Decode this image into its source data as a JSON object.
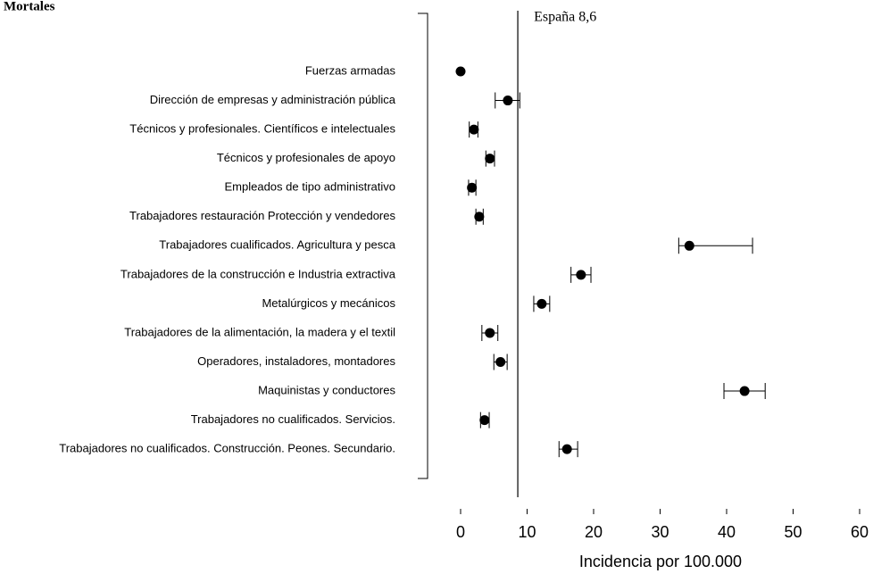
{
  "chart_data": {
    "type": "dot_errorbar",
    "title": "Mortales",
    "x_label": "Incidencia por 100.000",
    "categories": [
      "Fuerzas armadas",
      "Dirección de empresas y administración pública",
      "Técnicos y profesionales. Científicos e intelectuales",
      "Técnicos y profesionales de apoyo",
      "Empleados de tipo administrativo",
      "Trabajadores restauración Protección y vendedores",
      "Trabajadores cualificados. Agricultura y pesca",
      "Trabajadores de la construcción e Industria extractiva",
      "Metalúrgicos y mecánicos",
      "Trabajadores de la alimentación, la madera y el textil",
      "Operadores, instaladores, montadores",
      "Maquinistas y conductores",
      "Trabajadores no cualificados. Servicios.",
      "Trabajadores no cualificados. Construcción. Peones. Secundario."
    ],
    "values": [
      0,
      7.1,
      2.0,
      4.4,
      1.7,
      2.8,
      34.4,
      18.1,
      12.2,
      4.4,
      6.0,
      42.7,
      3.6,
      16.0
    ],
    "lower": [
      null,
      5.2,
      1.3,
      3.8,
      1.2,
      2.3,
      32.8,
      16.6,
      11.0,
      3.2,
      5.0,
      39.6,
      3.0,
      14.8
    ],
    "upper": [
      null,
      8.9,
      2.6,
      5.1,
      2.3,
      3.4,
      43.9,
      19.6,
      13.4,
      5.6,
      7.0,
      45.8,
      4.3,
      17.6
    ],
    "color": "#000000",
    "reference_line": {
      "value": 8.6,
      "label": "España 8,6"
    },
    "xlim": [
      0,
      60
    ],
    "xticks": [
      0,
      10,
      20,
      30,
      40,
      50,
      60
    ]
  }
}
